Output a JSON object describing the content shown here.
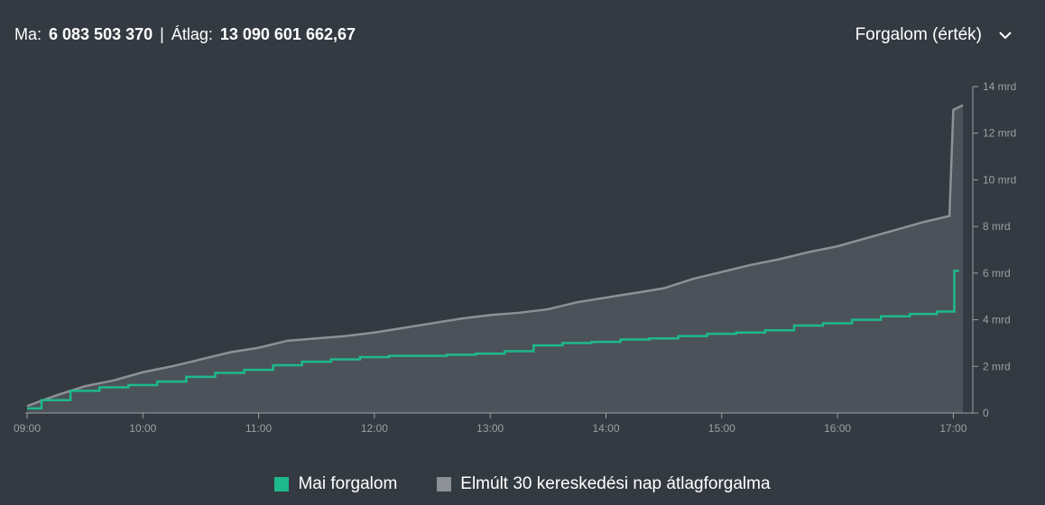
{
  "header": {
    "today_label": "Ma:",
    "today_value": "6 083 503 370",
    "separator": "|",
    "avg_label": "Átlag:",
    "avg_value": "13 090 601 662,67"
  },
  "selector": {
    "label": "Forgalom (érték)",
    "icon": "chevron-down-icon"
  },
  "legend": {
    "today": "Mai forgalom",
    "avg": "Elmúlt 30 kereskedési nap átlagforgalma"
  },
  "colors": {
    "today": "#1db98d",
    "avg_line": "#8e9197",
    "avg_fill": "#4c525a",
    "axis": "#9aa0a6"
  },
  "chart_data": {
    "type": "area",
    "x_ticks": [
      "09:00",
      "10:00",
      "11:00",
      "12:00",
      "13:00",
      "14:00",
      "15:00",
      "16:00",
      "17:00"
    ],
    "y_ticks": [
      "0",
      "2 mrd",
      "4 mrd",
      "6 mrd",
      "8 mrd",
      "10 mrd",
      "12 mrd",
      "14 mrd"
    ],
    "ylim": [
      0,
      14
    ],
    "y_unit": "mrd",
    "series": [
      {
        "name": "Elmúlt 30 kereskedési nap átlagforgalma",
        "type": "area",
        "x": [
          "09:00",
          "09:15",
          "09:30",
          "09:45",
          "10:00",
          "10:15",
          "10:30",
          "10:45",
          "11:00",
          "11:15",
          "11:30",
          "11:45",
          "12:00",
          "12:15",
          "12:30",
          "12:45",
          "13:00",
          "13:15",
          "13:30",
          "13:45",
          "14:00",
          "14:15",
          "14:30",
          "14:45",
          "15:00",
          "15:15",
          "15:30",
          "15:45",
          "16:00",
          "16:15",
          "16:30",
          "16:45",
          "16:58",
          "17:00",
          "17:05"
        ],
        "values": [
          0.3,
          0.75,
          1.15,
          1.4,
          1.75,
          2.0,
          2.3,
          2.6,
          2.8,
          3.1,
          3.2,
          3.3,
          3.45,
          3.65,
          3.85,
          4.05,
          4.2,
          4.3,
          4.45,
          4.75,
          4.95,
          5.15,
          5.35,
          5.75,
          6.05,
          6.35,
          6.6,
          6.9,
          7.15,
          7.5,
          7.85,
          8.2,
          8.45,
          13.0,
          13.2
        ]
      },
      {
        "name": "Mai forgalom",
        "type": "line",
        "x": [
          "09:00",
          "09:15",
          "09:30",
          "09:45",
          "10:00",
          "10:15",
          "10:30",
          "10:45",
          "11:00",
          "11:15",
          "11:30",
          "11:45",
          "12:00",
          "12:15",
          "12:30",
          "12:45",
          "13:00",
          "13:15",
          "13:30",
          "13:45",
          "14:00",
          "14:15",
          "14:30",
          "14:45",
          "15:00",
          "15:15",
          "15:30",
          "15:45",
          "16:00",
          "16:15",
          "16:30",
          "16:45",
          "16:58",
          "17:03"
        ],
        "values": [
          0.2,
          0.55,
          0.95,
          1.1,
          1.2,
          1.35,
          1.55,
          1.72,
          1.85,
          2.05,
          2.2,
          2.3,
          2.4,
          2.45,
          2.45,
          2.5,
          2.55,
          2.65,
          2.9,
          3.0,
          3.05,
          3.15,
          3.2,
          3.3,
          3.4,
          3.45,
          3.55,
          3.75,
          3.85,
          4.0,
          4.15,
          4.25,
          4.35,
          6.1
        ]
      }
    ]
  }
}
